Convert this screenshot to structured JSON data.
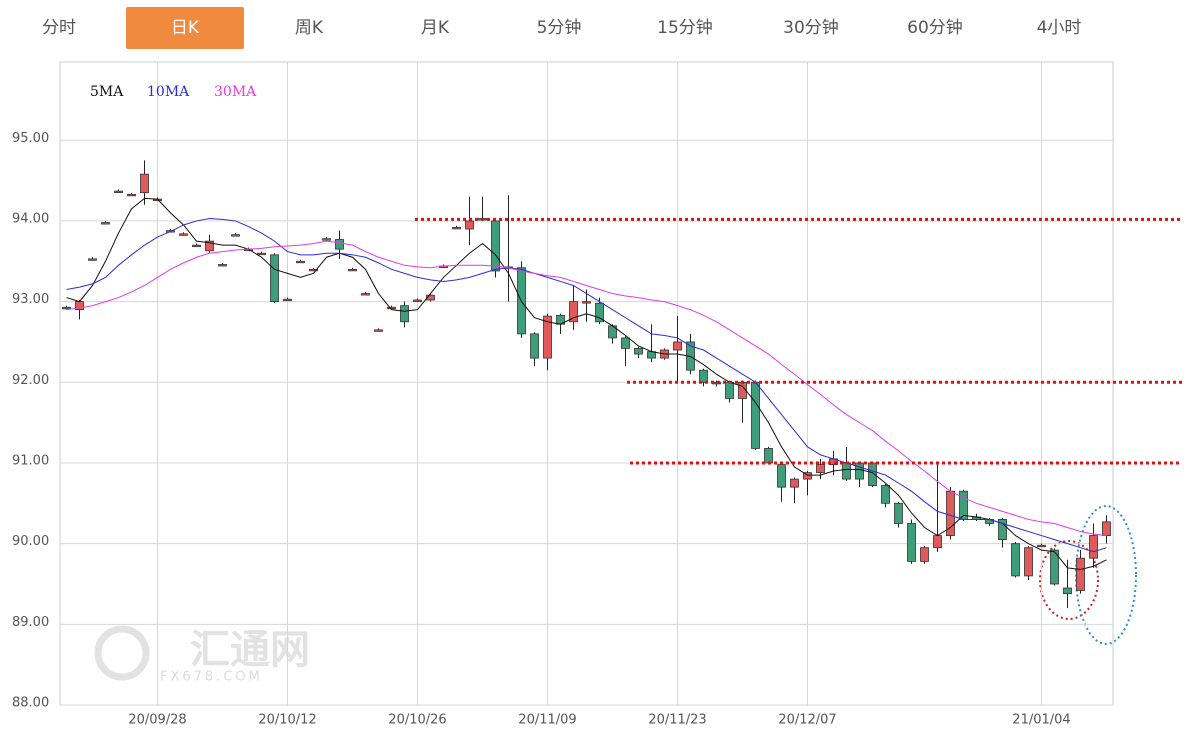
{
  "tabs": [
    "分时",
    "日K",
    "周K",
    "月K",
    "5分钟",
    "15分钟",
    "30分钟",
    "60分钟",
    "4小时"
  ],
  "active_tab": 1,
  "watermark": {
    "name": "汇通网",
    "url": "FX678.COM"
  },
  "chart_data": {
    "type": "candlestick",
    "categories": [
      null,
      null,
      null,
      null,
      null,
      null,
      null,
      "20/09/28",
      null,
      null,
      null,
      null,
      null,
      null,
      null,
      null,
      null,
      "20/10/12",
      null,
      null,
      null,
      null,
      null,
      null,
      null,
      null,
      null,
      "20/10/26",
      null,
      null,
      null,
      null,
      null,
      null,
      null,
      null,
      null,
      "20/11/09",
      null,
      null,
      null,
      null,
      null,
      null,
      null,
      null,
      null,
      "20/11/23",
      null,
      null,
      null,
      null,
      null,
      null,
      null,
      null,
      null,
      "20/12/07",
      null,
      null,
      null,
      null,
      null,
      null,
      null,
      null,
      null,
      null,
      null,
      null,
      null,
      null,
      null,
      null,
      null,
      "21/01/04",
      null,
      null,
      null,
      null,
      null
    ],
    "open": [
      92.93,
      92.9,
      93.53,
      93.98,
      94.37,
      94.33,
      94.35,
      94.27,
      93.88,
      93.84,
      93.7,
      93.63,
      93.46,
      93.83,
      93.65,
      93.6,
      93.58,
      93.03,
      93.5,
      93.4,
      93.78,
      93.77,
      93.4,
      93.1,
      92.65,
      92.93,
      92.95,
      93.02,
      93.02,
      93.44,
      93.92,
      93.9,
      94.03,
      94.0,
      93.43,
      93.42,
      92.6,
      92.3,
      92.83,
      92.75,
      93.0,
      92.98,
      92.7,
      92.55,
      92.42,
      92.38,
      92.3,
      92.4,
      92.5,
      92.15,
      92.0,
      92.0,
      91.8,
      92.0,
      91.18,
      90.98,
      90.7,
      90.8,
      90.88,
      90.98,
      91.0,
      91.0,
      91.0,
      90.72,
      90.5,
      90.25,
      89.78,
      89.95,
      90.1,
      90.65,
      90.33,
      90.3,
      90.3,
      90.0,
      89.6,
      89.98,
      89.92,
      89.45,
      89.42,
      89.82,
      90.1
    ],
    "high": [
      92.95,
      93.02,
      93.55,
      94.0,
      94.39,
      94.35,
      94.75,
      94.29,
      93.9,
      93.86,
      93.72,
      93.83,
      93.48,
      93.85,
      93.67,
      93.62,
      93.6,
      93.05,
      93.52,
      93.42,
      93.8,
      93.88,
      93.42,
      93.12,
      92.67,
      92.95,
      93.0,
      93.04,
      93.1,
      93.46,
      93.94,
      94.3,
      94.3,
      94.03,
      94.32,
      93.5,
      92.62,
      92.85,
      92.85,
      93.2,
      93.15,
      93.05,
      92.72,
      92.57,
      92.44,
      92.72,
      92.42,
      92.82,
      92.6,
      92.17,
      92.02,
      92.02,
      92.02,
      92.02,
      91.2,
      91.0,
      90.82,
      90.9,
      91.05,
      91.15,
      91.2,
      91.02,
      91.02,
      90.74,
      90.52,
      90.3,
      89.97,
      91.0,
      90.7,
      90.67,
      90.37,
      90.32,
      90.32,
      90.02,
      89.97,
      90.0,
      89.94,
      89.8,
      89.92,
      90.25,
      90.35
    ],
    "low": [
      92.9,
      92.78,
      93.51,
      93.96,
      94.35,
      94.31,
      94.2,
      94.25,
      93.86,
      93.82,
      93.68,
      93.6,
      93.44,
      93.81,
      93.63,
      93.58,
      92.98,
      93.01,
      93.48,
      93.38,
      93.76,
      93.53,
      93.38,
      93.08,
      92.63,
      92.91,
      92.68,
      93.0,
      93.0,
      93.42,
      93.9,
      93.7,
      94.0,
      93.3,
      93.0,
      92.55,
      92.2,
      92.15,
      92.6,
      92.65,
      92.75,
      92.72,
      92.48,
      92.2,
      92.3,
      92.25,
      92.28,
      92.0,
      92.1,
      91.95,
      91.95,
      91.75,
      91.5,
      91.16,
      90.98,
      90.52,
      90.5,
      90.6,
      90.8,
      90.85,
      90.78,
      90.7,
      90.7,
      90.45,
      90.2,
      89.75,
      89.75,
      89.9,
      90.05,
      90.28,
      90.28,
      90.22,
      89.95,
      89.58,
      89.55,
      89.96,
      89.48,
      89.2,
      89.38,
      89.7,
      90.0
    ],
    "close": [
      92.91,
      93.0,
      93.53,
      93.98,
      94.37,
      94.33,
      94.58,
      94.27,
      93.88,
      93.84,
      93.7,
      93.75,
      93.46,
      93.83,
      93.65,
      93.6,
      93.0,
      93.03,
      93.5,
      93.4,
      93.78,
      93.65,
      93.4,
      93.1,
      92.65,
      92.93,
      92.75,
      93.02,
      93.08,
      93.44,
      93.92,
      94.0,
      94.03,
      93.38,
      93.43,
      92.6,
      92.3,
      92.82,
      92.72,
      93.0,
      93.0,
      92.75,
      92.55,
      92.42,
      92.35,
      92.3,
      92.4,
      92.5,
      92.15,
      92.0,
      91.98,
      91.8,
      92.0,
      91.18,
      91.0,
      90.7,
      90.8,
      90.88,
      90.98,
      91.05,
      90.8,
      90.8,
      90.72,
      90.5,
      90.25,
      89.78,
      89.95,
      90.1,
      90.65,
      90.3,
      90.3,
      90.25,
      90.05,
      89.6,
      89.95,
      89.98,
      89.5,
      89.38,
      89.82,
      90.1,
      90.27
    ],
    "up_color": "#e05a5a",
    "down_color": "#3f9e7a",
    "series": [
      {
        "name": "5MA",
        "color": "#111111",
        "values": [
          93.05,
          93.0,
          93.2,
          93.5,
          93.85,
          94.15,
          94.28,
          94.27,
          94.1,
          93.95,
          93.75,
          93.73,
          93.7,
          93.7,
          93.65,
          93.55,
          93.4,
          93.35,
          93.3,
          93.35,
          93.55,
          93.6,
          93.55,
          93.4,
          93.1,
          92.9,
          92.88,
          92.9,
          93.1,
          93.3,
          93.45,
          93.6,
          93.72,
          93.58,
          93.35,
          93.0,
          92.8,
          92.75,
          92.72,
          92.8,
          92.85,
          92.8,
          92.7,
          92.58,
          92.45,
          92.38,
          92.35,
          92.35,
          92.32,
          92.22,
          92.1,
          92.0,
          91.95,
          91.75,
          91.5,
          91.2,
          90.95,
          90.85,
          90.85,
          90.9,
          90.92,
          90.92,
          90.88,
          90.75,
          90.6,
          90.38,
          90.2,
          90.1,
          90.2,
          90.35,
          90.33,
          90.3,
          90.25,
          90.1,
          90.0,
          89.92,
          89.9,
          89.7,
          89.68,
          89.72,
          89.8
        ]
      },
      {
        "name": "10MA",
        "color": "#2b2bd6",
        "values": [
          93.15,
          93.18,
          93.22,
          93.3,
          93.45,
          93.58,
          93.7,
          93.8,
          93.87,
          93.95,
          94.0,
          94.03,
          94.02,
          94.0,
          93.93,
          93.85,
          93.75,
          93.62,
          93.58,
          93.58,
          93.6,
          93.6,
          93.58,
          93.55,
          93.48,
          93.4,
          93.35,
          93.3,
          93.27,
          93.25,
          93.27,
          93.3,
          93.35,
          93.4,
          93.42,
          93.4,
          93.35,
          93.3,
          93.25,
          93.2,
          93.1,
          93.0,
          92.9,
          92.8,
          92.7,
          92.6,
          92.58,
          92.55,
          92.45,
          92.4,
          92.3,
          92.2,
          92.1,
          92.0,
          91.8,
          91.6,
          91.4,
          91.2,
          91.1,
          91.05,
          91.0,
          90.95,
          90.9,
          90.85,
          90.75,
          90.65,
          90.52,
          90.4,
          90.35,
          90.3,
          90.3,
          90.3,
          90.25,
          90.2,
          90.15,
          90.1,
          90.05,
          90.0,
          89.95,
          89.9,
          89.95
        ]
      },
      {
        "name": "30MA",
        "color": "#e23ce2",
        "values": [
          92.9,
          92.92,
          92.95,
          93.0,
          93.05,
          93.12,
          93.2,
          93.3,
          93.4,
          93.48,
          93.55,
          93.6,
          93.62,
          93.64,
          93.65,
          93.66,
          93.68,
          93.69,
          93.7,
          93.72,
          93.75,
          93.73,
          93.7,
          93.62,
          93.55,
          93.5,
          93.45,
          93.43,
          93.42,
          93.44,
          93.45,
          93.45,
          93.45,
          93.44,
          93.42,
          93.38,
          93.35,
          93.32,
          93.3,
          93.25,
          93.2,
          93.15,
          93.1,
          93.07,
          93.05,
          93.02,
          93.0,
          92.95,
          92.9,
          92.83,
          92.75,
          92.65,
          92.55,
          92.45,
          92.35,
          92.22,
          92.1,
          91.97,
          91.85,
          91.72,
          91.6,
          91.5,
          91.4,
          91.27,
          91.15,
          91.02,
          90.9,
          90.77,
          90.65,
          90.57,
          90.5,
          90.45,
          90.4,
          90.35,
          90.3,
          90.27,
          90.25,
          90.2,
          90.15,
          90.12,
          90.1
        ]
      }
    ],
    "levels": [
      94.02,
      92.0,
      91.0
    ],
    "level_color": "#dd1111",
    "ylim": [
      88,
      95.97
    ],
    "yticks": [
      {
        "value": 88,
        "label": "88.00"
      },
      {
        "value": 89,
        "label": "89.00"
      },
      {
        "value": 90,
        "label": "90.00"
      },
      {
        "value": 91,
        "label": "91.00"
      },
      {
        "value": 92,
        "label": "92.00"
      },
      {
        "value": 93,
        "label": "93.00"
      },
      {
        "value": 94,
        "label": "94.00"
      },
      {
        "value": 95,
        "label": "95.00"
      }
    ],
    "grid": true
  }
}
